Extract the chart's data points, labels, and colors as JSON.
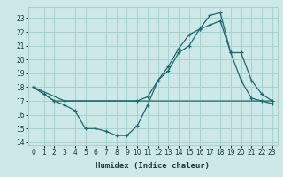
{
  "xlabel": "Humidex (Indice chaleur)",
  "bg_color": "#cce8e8",
  "grid_color": "#aad0d0",
  "line_color": "#1a6b6b",
  "xlim": [
    -0.5,
    23.5
  ],
  "ylim": [
    13.8,
    23.8
  ],
  "yticks": [
    14,
    15,
    16,
    17,
    18,
    19,
    20,
    21,
    22,
    23
  ],
  "xticks": [
    0,
    1,
    2,
    3,
    4,
    5,
    6,
    7,
    8,
    9,
    10,
    11,
    12,
    13,
    14,
    15,
    16,
    17,
    18,
    19,
    20,
    21,
    22,
    23
  ],
  "line_dip_x": [
    0,
    1,
    2,
    3,
    4,
    5,
    6,
    7,
    8,
    9,
    10,
    11,
    12,
    13,
    14,
    15,
    16,
    17,
    18,
    19,
    20,
    21,
    22,
    23
  ],
  "line_dip_y": [
    18.0,
    17.5,
    17.0,
    16.7,
    16.3,
    15.0,
    15.0,
    14.8,
    14.5,
    14.5,
    15.2,
    16.7,
    18.5,
    19.5,
    20.8,
    21.8,
    22.2,
    23.2,
    23.4,
    20.5,
    18.5,
    17.2,
    17.0,
    16.8
  ],
  "line_flat_x": [
    0,
    1,
    2,
    3,
    23
  ],
  "line_flat_y": [
    18.0,
    17.5,
    17.0,
    17.0,
    17.0
  ],
  "line_up_x": [
    0,
    3,
    10,
    11,
    12,
    13,
    14,
    15,
    16,
    17,
    18,
    19,
    20,
    21,
    22,
    23
  ],
  "line_up_y": [
    18.0,
    17.0,
    17.0,
    17.3,
    18.5,
    19.2,
    20.5,
    21.0,
    22.2,
    22.5,
    22.8,
    20.5,
    20.5,
    18.5,
    17.5,
    17.0
  ]
}
